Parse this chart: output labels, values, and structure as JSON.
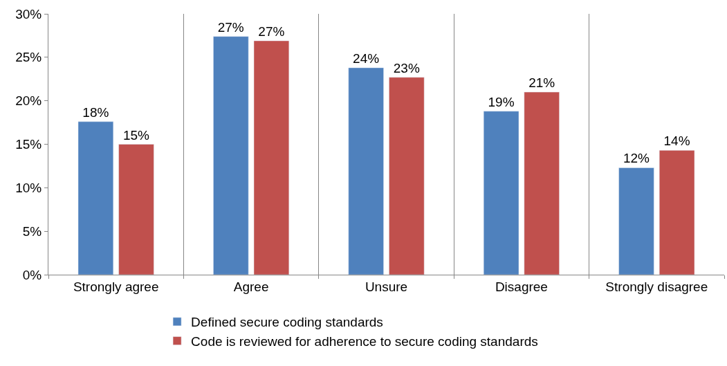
{
  "chart_data": {
    "type": "bar",
    "categories": [
      "Strongly agree",
      "Agree",
      "Unsure",
      "Disagree",
      "Strongly disagree"
    ],
    "series": [
      {
        "name": "Defined secure coding standards",
        "color": "#4f81bd",
        "values": [
          17.6,
          27.4,
          23.8,
          18.8,
          12.3
        ],
        "value_labels": [
          "18%",
          "27%",
          "24%",
          "19%",
          "12%"
        ]
      },
      {
        "name": "Code is reviewed for adherence to secure coding standards",
        "color": "#c0504d",
        "values": [
          15.0,
          26.9,
          22.7,
          21.0,
          14.3
        ],
        "value_labels": [
          "15%",
          "27%",
          "23%",
          "21%",
          "14%"
        ]
      }
    ],
    "ylim": [
      0,
      30
    ],
    "yticks": [
      {
        "value": 0,
        "label": "0%"
      },
      {
        "value": 5,
        "label": "5%"
      },
      {
        "value": 10,
        "label": "10%"
      },
      {
        "value": 15,
        "label": "15%"
      },
      {
        "value": 20,
        "label": "20%"
      },
      {
        "value": 25,
        "label": "25%"
      },
      {
        "value": 30,
        "label": "30%"
      }
    ],
    "grid": "x",
    "legend": "bottom"
  }
}
